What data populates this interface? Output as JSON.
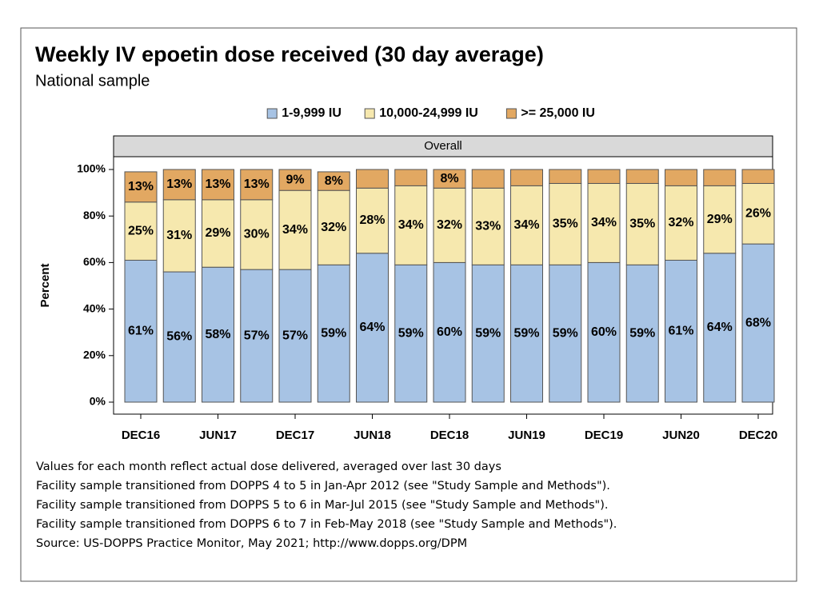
{
  "chart_data": {
    "type": "stacked_bar",
    "title": "Weekly IV epoetin dose received (30 day average)",
    "subtitle": "National sample",
    "panel_label": "Overall",
    "y_label": "Percent",
    "categories": [
      "DEC16",
      null,
      "JUN17",
      null,
      "DEC17",
      null,
      "JUN18",
      null,
      "DEC18",
      null,
      "JUN19",
      null,
      "DEC19",
      null,
      "JUN20",
      null,
      "DEC20"
    ],
    "series": [
      {
        "name": "1-9,999 IU",
        "color": "#a7c3e4",
        "values": [
          61,
          56,
          58,
          57,
          57,
          59,
          64,
          59,
          60,
          59,
          59,
          59,
          60,
          59,
          61,
          64,
          68
        ],
        "value_labels": [
          "61%",
          "56%",
          "58%",
          "57%",
          "57%",
          "59%",
          "64%",
          "59%",
          "60%",
          "59%",
          "59%",
          "59%",
          "60%",
          "59%",
          "61%",
          "64%",
          "68%"
        ]
      },
      {
        "name": "10,000-24,999 IU",
        "color": "#f6e8ae",
        "values": [
          25,
          31,
          29,
          30,
          34,
          32,
          28,
          34,
          32,
          33,
          34,
          35,
          34,
          35,
          32,
          29,
          26
        ],
        "value_labels": [
          "25%",
          "31%",
          "29%",
          "30%",
          "34%",
          "32%",
          "28%",
          "34%",
          "32%",
          "33%",
          "34%",
          "35%",
          "34%",
          "35%",
          "32%",
          "29%",
          "26%"
        ]
      },
      {
        "name": ">= 25,000 IU",
        "color": "#e2a862",
        "values": [
          13,
          13,
          13,
          13,
          9,
          8,
          8,
          7,
          8,
          8,
          7,
          6,
          6,
          6,
          7,
          7,
          6
        ],
        "value_labels": [
          "13%",
          "13%",
          "13%",
          "13%",
          "9%",
          "8%",
          null,
          null,
          "8%",
          null,
          null,
          null,
          null,
          null,
          null,
          null,
          null
        ]
      }
    ],
    "ylim": [
      0,
      100
    ],
    "yticks": [
      {
        "value": 0,
        "label": "0%"
      },
      {
        "value": 20,
        "label": "20%"
      },
      {
        "value": 40,
        "label": "40%"
      },
      {
        "value": 60,
        "label": "60%"
      },
      {
        "value": 80,
        "label": "80%"
      },
      {
        "value": 100,
        "label": "100%"
      }
    ],
    "footnotes": [
      "Values for each month reflect actual dose delivered, averaged over last 30 days",
      "Facility sample transitioned from DOPPS 4 to 5 in Jan-Apr 2012 (see \"Study Sample and Methods\").",
      "Facility sample transitioned from DOPPS 5 to 6 in Mar-Jul 2015 (see \"Study Sample and Methods\").",
      "Facility sample transitioned from DOPPS 6 to 7 in Feb-May 2018 (see \"Study Sample and Methods\").",
      "Source: US-DOPPS Practice Monitor, May 2021; http://www.dopps.org/DPM"
    ]
  }
}
